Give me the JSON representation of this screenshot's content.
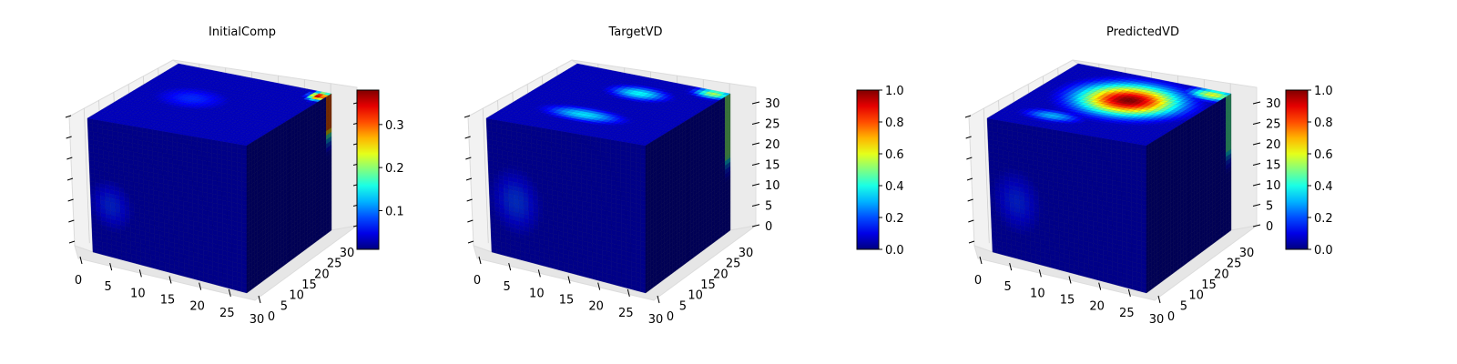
{
  "chart_data": [
    {
      "type": "heatmap",
      "title": "InitialComp",
      "x_ticks": [
        "0",
        "5",
        "10",
        "15",
        "20",
        "25",
        "30"
      ],
      "y_ticks": [
        "0",
        "5",
        "10",
        "15",
        "20",
        "25",
        "30"
      ],
      "z_ticks": [],
      "colorbar": {
        "ticks": [
          "0.1",
          "0.2",
          "0.3"
        ],
        "min": 0.01,
        "max": 0.38,
        "colormap": "jet"
      },
      "top_hotspots": [
        {
          "u": 0.96,
          "v": 0.93,
          "value": 0.36,
          "sx": 0.04,
          "sy": 0.05
        },
        {
          "u": 0.35,
          "v": 0.55,
          "value": 0.07,
          "sx": 0.18,
          "sy": 0.14
        }
      ],
      "front_hotspots": [
        {
          "u": 0.13,
          "v": 0.62,
          "value": 0.07,
          "sx": 0.12,
          "sy": 0.16
        }
      ],
      "side_edge": {
        "value": 0.3,
        "width": 0.05,
        "fade": 0.25
      }
    },
    {
      "type": "heatmap",
      "title": "TargetVD",
      "x_ticks": [
        "0",
        "5",
        "10",
        "15",
        "20",
        "25",
        "30"
      ],
      "y_ticks": [
        "0",
        "5",
        "10",
        "15",
        "20",
        "25",
        "30"
      ],
      "z_ticks": [
        "0",
        "5",
        "10",
        "15",
        "20",
        "25",
        "30"
      ],
      "colorbar": {
        "ticks": [
          "0.0",
          "0.2",
          "0.4",
          "0.6",
          "0.8",
          "1.0"
        ],
        "min": 0.0,
        "max": 1.0,
        "colormap": "jet"
      },
      "top_hotspots": [
        {
          "u": 0.92,
          "v": 0.95,
          "value": 0.55,
          "sx": 0.08,
          "sy": 0.05
        },
        {
          "u": 0.55,
          "v": 0.75,
          "value": 0.38,
          "sx": 0.12,
          "sy": 0.07
        },
        {
          "u": 0.45,
          "v": 0.3,
          "value": 0.35,
          "sx": 0.16,
          "sy": 0.07
        }
      ],
      "front_hotspots": [
        {
          "u": 0.17,
          "v": 0.58,
          "value": 0.18,
          "sx": 0.12,
          "sy": 0.18
        }
      ],
      "side_edge": {
        "value": 0.5,
        "width": 0.05,
        "fade": 0.45
      }
    },
    {
      "type": "heatmap",
      "title": "PredictedVD",
      "x_ticks": [
        "0",
        "5",
        "10",
        "15",
        "20",
        "25",
        "30"
      ],
      "y_ticks": [
        "0",
        "5",
        "10",
        "15",
        "20",
        "25",
        "30"
      ],
      "z_ticks": [
        "0",
        "5",
        "10",
        "15",
        "20",
        "25",
        "30"
      ],
      "colorbar": {
        "ticks": [
          "0.0",
          "0.2",
          "0.4",
          "0.6",
          "0.8",
          "1.0"
        ],
        "min": 0.0,
        "max": 1.0,
        "colormap": "jet"
      },
      "top_hotspots": [
        {
          "u": 0.55,
          "v": 0.62,
          "value": 1.0,
          "sx": 0.2,
          "sy": 0.17
        },
        {
          "u": 0.92,
          "v": 0.93,
          "value": 0.6,
          "sx": 0.1,
          "sy": 0.06
        },
        {
          "u": 0.3,
          "v": 0.2,
          "value": 0.3,
          "sx": 0.12,
          "sy": 0.06
        }
      ],
      "front_hotspots": [
        {
          "u": 0.17,
          "v": 0.58,
          "value": 0.16,
          "sx": 0.12,
          "sy": 0.18
        }
      ],
      "side_edge": {
        "value": 0.45,
        "width": 0.05,
        "fade": 0.4
      }
    }
  ]
}
